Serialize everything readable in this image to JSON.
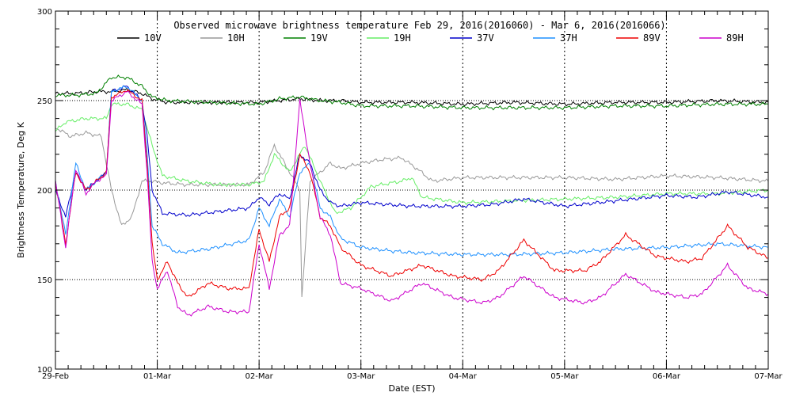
{
  "chart_data": {
    "type": "line",
    "title": "Observed microwave brightness temperature Feb 29, 2016(2016060) - Mar  6, 2016(2016066)",
    "xlabel": "Date (EST)",
    "ylabel": "Brightness Temperature, Deg K",
    "ylim": [
      100,
      300
    ],
    "yticks": [
      100,
      150,
      200,
      250,
      300
    ],
    "xlim": [
      0,
      7
    ],
    "xtick_labels": [
      "29-Feb",
      "01-Mar",
      "02-Mar",
      "03-Mar",
      "04-Mar",
      "05-Mar",
      "06-Mar",
      "07-Mar"
    ],
    "grid": true,
    "legend_position": "top",
    "series": [
      {
        "name": "10V",
        "color": "#000000",
        "x": [
          0,
          0.2,
          0.4,
          0.55,
          0.7,
          0.85,
          0.95,
          1.1,
          1.5,
          2,
          2.2,
          2.4,
          2.6,
          2.8,
          3,
          3.5,
          4,
          4.5,
          5,
          5.5,
          6,
          6.5,
          7
        ],
        "values": [
          254,
          254,
          255,
          255,
          256,
          254,
          251,
          249,
          249,
          249,
          250,
          251,
          250,
          250,
          249,
          249,
          248,
          249,
          248,
          249,
          249,
          250,
          249
        ]
      },
      {
        "name": "10H",
        "color": "#999999",
        "x": [
          0,
          0.15,
          0.3,
          0.45,
          0.55,
          0.65,
          0.75,
          0.85,
          0.95,
          1.05,
          1.3,
          1.6,
          1.9,
          2.05,
          2.15,
          2.25,
          2.4,
          2.42,
          2.5,
          2.7,
          2.8,
          3,
          3.2,
          3.4,
          3.55,
          3.7,
          4,
          4.5,
          5,
          5.5,
          6,
          6.5,
          7
        ],
        "values": [
          235,
          230,
          232,
          230,
          200,
          180,
          185,
          205,
          205,
          204,
          203,
          203,
          203,
          210,
          225,
          215,
          200,
          140,
          205,
          215,
          212,
          215,
          217,
          218,
          212,
          205,
          207,
          207,
          207,
          206,
          208,
          207,
          205
        ]
      },
      {
        "name": "19V",
        "color": "#008000",
        "x": [
          0,
          0.2,
          0.4,
          0.55,
          0.7,
          0.85,
          0.95,
          1.1,
          1.5,
          2,
          2.2,
          2.4,
          2.6,
          2.8,
          3,
          3.5,
          4,
          4.5,
          5,
          5.5,
          6,
          6.5,
          7
        ],
        "values": [
          253,
          253,
          254,
          263,
          263,
          258,
          252,
          250,
          249,
          248,
          251,
          252,
          250,
          249,
          247,
          247,
          246,
          246,
          246,
          247,
          247,
          248,
          248
        ]
      },
      {
        "name": "19H",
        "color": "#66ee66",
        "x": [
          0,
          0.1,
          0.3,
          0.5,
          0.55,
          0.7,
          0.85,
          0.95,
          1.05,
          1.3,
          1.6,
          1.9,
          2.05,
          2.15,
          2.3,
          2.45,
          2.6,
          2.75,
          2.9,
          3.1,
          3.4,
          3.5,
          3.6,
          4,
          4.5,
          5,
          5.5,
          6,
          6.5,
          7
        ],
        "values": [
          233,
          238,
          240,
          240,
          248,
          248,
          245,
          225,
          208,
          205,
          203,
          203,
          205,
          220,
          210,
          225,
          205,
          187,
          190,
          202,
          205,
          207,
          196,
          193,
          194,
          195,
          196,
          198,
          198,
          200
        ]
      },
      {
        "name": "37V",
        "color": "#0000cc",
        "x": [
          0,
          0.1,
          0.2,
          0.3,
          0.4,
          0.5,
          0.55,
          0.7,
          0.85,
          0.9,
          0.95,
          1.05,
          1.3,
          1.6,
          1.9,
          2,
          2.1,
          2.2,
          2.3,
          2.4,
          2.5,
          2.6,
          2.7,
          2.8,
          3,
          3.5,
          4,
          4.3,
          4.6,
          5,
          5.5,
          6,
          6.3,
          6.6,
          7
        ],
        "values": [
          200,
          185,
          210,
          200,
          205,
          210,
          255,
          258,
          250,
          230,
          200,
          187,
          186,
          188,
          190,
          196,
          192,
          198,
          195,
          220,
          215,
          200,
          193,
          191,
          193,
          191,
          191,
          192,
          195,
          191,
          194,
          197,
          196,
          199,
          196
        ]
      },
      {
        "name": "37H",
        "color": "#1e90ff",
        "x": [
          0,
          0.1,
          0.2,
          0.3,
          0.4,
          0.5,
          0.55,
          0.7,
          0.85,
          0.9,
          0.95,
          1.05,
          1.2,
          1.5,
          1.9,
          2,
          2.1,
          2.2,
          2.3,
          2.4,
          2.5,
          2.6,
          2.7,
          2.8,
          3,
          3.3,
          3.5,
          4,
          4.5,
          5,
          5.5,
          6,
          6.5,
          7
        ],
        "values": [
          205,
          175,
          215,
          200,
          205,
          210,
          255,
          258,
          250,
          220,
          180,
          170,
          165,
          167,
          172,
          190,
          180,
          195,
          185,
          210,
          215,
          190,
          185,
          173,
          168,
          166,
          165,
          164,
          164,
          165,
          167,
          168,
          170,
          168
        ]
      },
      {
        "name": "89V",
        "color": "#ee0000",
        "x": [
          0,
          0.1,
          0.2,
          0.3,
          0.4,
          0.5,
          0.55,
          0.7,
          0.85,
          0.9,
          0.95,
          1,
          1.05,
          1.1,
          1.2,
          1.3,
          1.5,
          1.7,
          1.9,
          2,
          2.1,
          2.2,
          2.3,
          2.4,
          2.5,
          2.6,
          2.7,
          2.8,
          3,
          3.3,
          3.6,
          3.9,
          4.2,
          4.35,
          4.6,
          4.9,
          5.2,
          5.35,
          5.6,
          5.9,
          6.2,
          6.35,
          6.6,
          6.8,
          7
        ],
        "values": [
          205,
          170,
          210,
          200,
          205,
          210,
          252,
          256,
          250,
          215,
          170,
          150,
          155,
          160,
          148,
          140,
          148,
          145,
          145,
          178,
          160,
          185,
          190,
          220,
          210,
          185,
          180,
          168,
          158,
          152,
          158,
          152,
          150,
          155,
          172,
          155,
          155,
          160,
          175,
          163,
          160,
          162,
          180,
          168,
          162
        ]
      },
      {
        "name": "89H",
        "color": "#cc00cc",
        "x": [
          0,
          0.1,
          0.2,
          0.3,
          0.4,
          0.5,
          0.55,
          0.7,
          0.85,
          0.9,
          0.95,
          1,
          1.05,
          1.1,
          1.2,
          1.3,
          1.5,
          1.7,
          1.9,
          2,
          2.1,
          2.2,
          2.3,
          2.4,
          2.5,
          2.6,
          2.7,
          2.8,
          3,
          3.3,
          3.6,
          3.9,
          4.2,
          4.35,
          4.6,
          4.9,
          5.2,
          5.35,
          5.6,
          5.9,
          6.2,
          6.35,
          6.6,
          6.8,
          7
        ],
        "values": [
          205,
          168,
          212,
          198,
          205,
          208,
          250,
          255,
          248,
          210,
          160,
          145,
          150,
          155,
          135,
          130,
          135,
          132,
          132,
          170,
          145,
          175,
          180,
          250,
          215,
          185,
          175,
          148,
          145,
          138,
          148,
          140,
          137,
          140,
          152,
          140,
          137,
          140,
          153,
          143,
          140,
          142,
          158,
          145,
          142
        ]
      }
    ]
  }
}
